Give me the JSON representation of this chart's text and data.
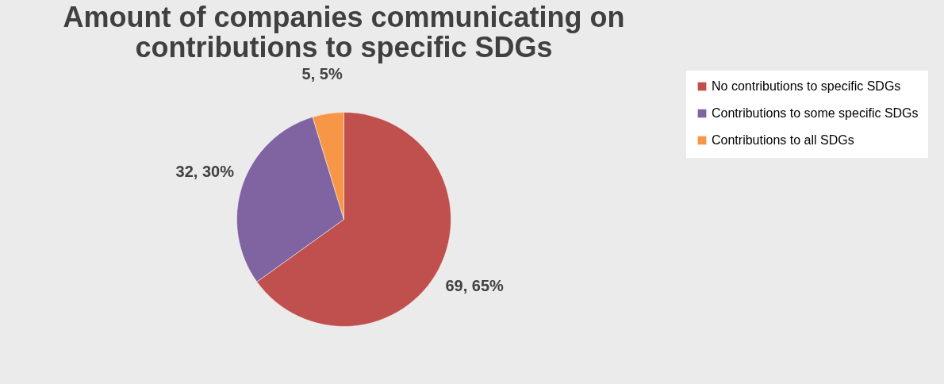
{
  "chart_data": {
    "type": "pie",
    "title": "Amount of companies communicating on contributions to specific SDGs",
    "categories": [
      "No contributions to specific SDGs",
      "Contributions to some specific SDGs",
      "Contributions to all SDGs"
    ],
    "values": [
      69,
      32,
      5
    ],
    "colors": [
      "#c0504d",
      "#8064a2",
      "#f79646"
    ],
    "value_labels": [
      "69, 65%",
      "32, 30%",
      "5, 5%"
    ],
    "legend": "right"
  }
}
